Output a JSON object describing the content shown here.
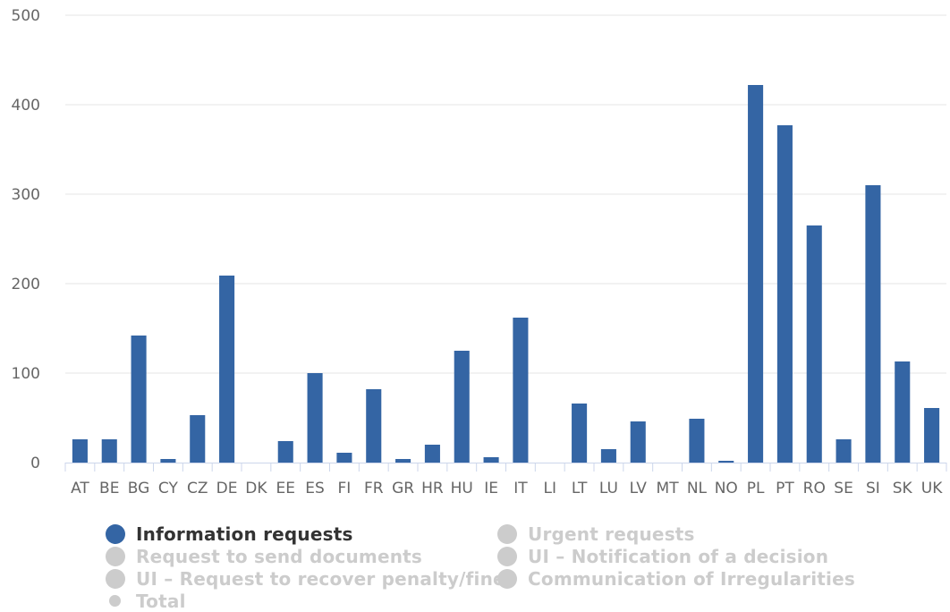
{
  "chart_data": {
    "type": "bar",
    "categories": [
      "AT",
      "BE",
      "BG",
      "CY",
      "CZ",
      "DE",
      "DK",
      "EE",
      "ES",
      "FI",
      "FR",
      "GR",
      "HR",
      "HU",
      "IE",
      "IT",
      "LI",
      "LT",
      "LU",
      "LV",
      "MT",
      "NL",
      "NO",
      "PL",
      "PT",
      "RO",
      "SE",
      "SI",
      "SK",
      "UK"
    ],
    "series": [
      {
        "name": "Information requests",
        "color": "#3465a4",
        "values": [
          26,
          26,
          142,
          4,
          53,
          209,
          0,
          24,
          100,
          11,
          82,
          4,
          20,
          125,
          6,
          162,
          0,
          66,
          15,
          46,
          0,
          49,
          2,
          422,
          377,
          265,
          26,
          310,
          113,
          61
        ]
      }
    ],
    "ylim": [
      0,
      500
    ],
    "yticks": [
      0,
      100,
      200,
      300,
      400,
      500
    ],
    "grid": true,
    "legend_position": "bottom",
    "title": "",
    "xlabel": "",
    "ylabel": ""
  },
  "legend": {
    "rows": [
      [
        {
          "label": "Information requests",
          "active": true,
          "color": "#3465a4",
          "marker": "big"
        },
        {
          "label": "Urgent requests",
          "active": false,
          "color": "#cccccc",
          "marker": "big"
        }
      ],
      [
        {
          "label": "Request to send documents",
          "active": false,
          "color": "#cccccc",
          "marker": "big"
        },
        {
          "label": "UI – Notification of a decision",
          "active": false,
          "color": "#cccccc",
          "marker": "big"
        }
      ],
      [
        {
          "label": "UI – Request to recover penalty/fine",
          "active": false,
          "color": "#cccccc",
          "marker": "big"
        },
        {
          "label": "Communication of Irregularities",
          "active": false,
          "color": "#cccccc",
          "marker": "big"
        }
      ],
      [
        {
          "label": "Total",
          "active": false,
          "color": "#cccccc",
          "marker": "small"
        }
      ]
    ]
  }
}
